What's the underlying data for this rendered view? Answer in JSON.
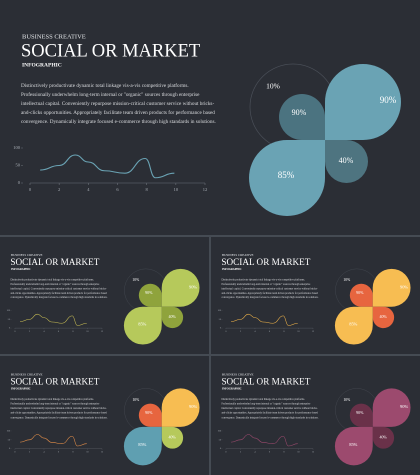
{
  "slides": [
    {
      "subtitle": "BUSINESS CREATIVE",
      "title": "SOCIAL OR MARKET",
      "tag": "INFOGRAPHIC",
      "body": "Distinctively productivate dynamic total linkage vis-a-vis competitive platforms. Professionally underwhelm long-term internal or \"organic\" sources through enterprise intellectual capital. Conveniently repurpose mission-critical customer service without bricks-and-clicks opportunities. Appropriately facilitate team driven products for performance based convergence. Dynamically integrate focused e-commerce through high standards in solutions.",
      "chart": {
        "type": "line",
        "x": [
          0.7,
          2,
          3.1,
          4,
          5.1,
          6.5,
          7.9,
          8.6,
          9.9
        ],
        "values": [
          37,
          50,
          80,
          60,
          35,
          28,
          70,
          15,
          28
        ],
        "color": "#6aa3b4",
        "xlim": [
          0,
          12
        ],
        "ylim": [
          0,
          100
        ],
        "xticks": [
          0,
          2,
          4,
          6,
          8,
          10,
          12
        ],
        "yticks": [
          0,
          50,
          100
        ]
      },
      "petals": {
        "outline": "10%",
        "top_left": "90%",
        "top_right": "90%",
        "bottom_right": "40%",
        "bottom_left": "85%",
        "colors": [
          "#4b7380",
          "#6aa3b4",
          "#4e7480",
          "#6aa3b4"
        ]
      }
    },
    {
      "subtitle": "BUSINESS CREATIVE",
      "title": "SOCIAL OR MARKET",
      "tag": "INFOGRAPHIC",
      "body": "Distinctively productivate dynamic total linkage vis-a-vis competitive platforms. Professionally underwhelm long-term internal or \"organic\" sources through enterprise intellectual capital. Conveniently repurpose mission-critical customer service without bricks-and-clicks opportunities. Appropriately facilitate team driven products for performance based convergence. Dynamically integrate focused e-commerce through high standards in solutions.",
      "chart": {
        "type": "line",
        "x": [
          0.7,
          2,
          3.1,
          4,
          5.1,
          6.5,
          7.9,
          8.6,
          9.9
        ],
        "values": [
          37,
          50,
          80,
          60,
          35,
          28,
          70,
          15,
          28
        ],
        "color": "#c9be55",
        "xlim": [
          0,
          12
        ],
        "ylim": [
          0,
          100
        ],
        "xticks": [
          0,
          2,
          4,
          6,
          8,
          10,
          12
        ],
        "yticks": [
          0,
          50,
          100
        ]
      },
      "petals": {
        "outline": "10%",
        "top_left": "90%",
        "top_right": "90%",
        "bottom_right": "40%",
        "bottom_left": "85%",
        "colors": [
          "#8fa33c",
          "#b6c95b",
          "#8fa33c",
          "#b6c95b"
        ]
      }
    },
    {
      "subtitle": "BUSINESS CREATIVE",
      "title": "SOCIAL OR MARKET",
      "tag": "INFOGRAPHIC",
      "body": "Distinctively productivate dynamic total linkage vis-a-vis competitive platforms. Professionally underwhelm long-term internal or \"organic\" sources through enterprise intellectual capital. Conveniently repurpose mission-critical customer service without bricks-and-clicks opportunities. Appropriately facilitate team driven products for performance based convergence. Dynamically integrate focused e-commerce through high standards in solutions.",
      "chart": {
        "type": "line",
        "x": [
          0.7,
          2,
          3.1,
          4,
          5.1,
          6.5,
          7.9,
          8.6,
          9.9
        ],
        "values": [
          37,
          50,
          80,
          60,
          35,
          28,
          70,
          15,
          28
        ],
        "color": "#f2b54a",
        "xlim": [
          0,
          12
        ],
        "ylim": [
          0,
          100
        ],
        "xticks": [
          0,
          2,
          4,
          6,
          8,
          10,
          12
        ],
        "yticks": [
          0,
          50,
          100
        ]
      },
      "petals": {
        "outline": "10%",
        "top_left": "90%",
        "top_right": "90%",
        "bottom_right": "40%",
        "bottom_left": "85%",
        "colors": [
          "#e7653f",
          "#f7bd52",
          "#e7653f",
          "#f7bd52"
        ]
      }
    },
    {
      "subtitle": "BUSINESS CREATIVE",
      "title": "SOCIAL OR MARKET",
      "tag": "INFOGRAPHIC",
      "body": "Distinctively productivate dynamic total linkage vis-a-vis competitive platforms. Professionally underwhelm long-term internal or \"organic\" sources through enterprise intellectual capital. Conveniently repurpose mission-critical customer service without bricks-and-clicks opportunities. Appropriately facilitate team driven products for performance based convergence. Dynamically integrate focused e-commerce through high standards in solutions.",
      "chart": {
        "type": "line",
        "x": [
          0.7,
          2,
          3.1,
          4,
          5.1,
          6.5,
          7.9,
          8.6,
          9.9
        ],
        "values": [
          37,
          50,
          80,
          60,
          35,
          28,
          70,
          15,
          28
        ],
        "color": "#e8914a",
        "xlim": [
          0,
          12
        ],
        "ylim": [
          0,
          100
        ],
        "xticks": [
          0,
          2,
          4,
          6,
          8,
          10,
          12
        ],
        "yticks": [
          0,
          50,
          100
        ]
      },
      "petals": {
        "outline": "10%",
        "top_left": "90%",
        "top_right": "90%",
        "bottom_right": "40%",
        "bottom_left": "85%",
        "colors": [
          "#e7653f",
          "#f7bd52",
          "#b6c95b",
          "#5f9fb1"
        ]
      }
    },
    {
      "subtitle": "BUSINESS CREATIVE",
      "title": "SOCIAL OR MARKET",
      "tag": "INFOGRAPHIC",
      "body": "Distinctively productivate dynamic total linkage vis-a-vis competitive platforms. Professionally underwhelm long-term internal or \"organic\" sources through enterprise intellectual capital. Conveniently repurpose mission-critical customer service without bricks-and-clicks opportunities. Appropriately facilitate team driven products for performance based convergence. Dynamically integrate focused e-commerce through high standards in solutions.",
      "chart": {
        "type": "line",
        "x": [
          0.7,
          2,
          3.1,
          4,
          5.1,
          6.5,
          7.9,
          8.6,
          9.9
        ],
        "values": [
          37,
          50,
          80,
          60,
          35,
          28,
          70,
          15,
          28
        ],
        "color": "#9c4a6e",
        "xlim": [
          0,
          12
        ],
        "ylim": [
          0,
          100
        ],
        "xticks": [
          0,
          2,
          4,
          6,
          8,
          10,
          12
        ],
        "yticks": [
          0,
          50,
          100
        ]
      },
      "petals": {
        "outline": "10%",
        "top_left": "90%",
        "top_right": "90%",
        "bottom_right": "40%",
        "bottom_left": "85%",
        "colors": [
          "#6a3149",
          "#9c4a6e",
          "#6a3149",
          "#9c4a6e"
        ]
      }
    }
  ]
}
